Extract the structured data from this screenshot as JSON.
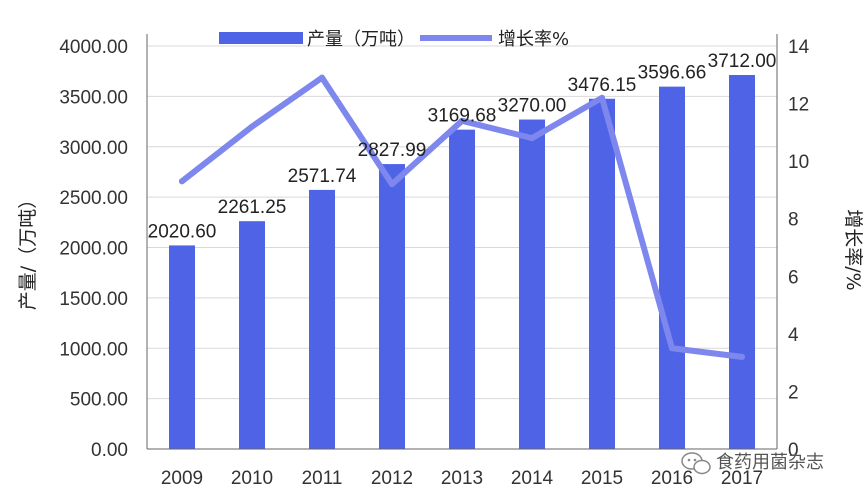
{
  "chart_data": {
    "type": "bar",
    "categories": [
      "2009",
      "2010",
      "2011",
      "2012",
      "2013",
      "2014",
      "2015",
      "2016",
      "2017"
    ],
    "series": [
      {
        "name": "产量（万吨）",
        "type": "bar",
        "axis": "left",
        "values": [
          2020.6,
          2261.25,
          2571.74,
          2827.99,
          3169.68,
          3270.0,
          3476.15,
          3596.66,
          3712.0
        ],
        "labels": [
          "2020.60",
          "2261.25",
          "2571.74",
          "2827.99",
          "3169.68",
          "3270.00",
          "3476.15",
          "3596.66",
          "3712.00"
        ],
        "color": "#4f63e6"
      },
      {
        "name": "增长率%",
        "type": "line",
        "axis": "right",
        "values": [
          9.3,
          11.2,
          12.9,
          9.2,
          11.4,
          10.8,
          12.2,
          3.5,
          3.2
        ],
        "color": "#7d87ee"
      }
    ],
    "ylabel": "产量/（万吨）",
    "y2label": "增长率/%",
    "ylim": [
      0,
      4000
    ],
    "y2lim": [
      0,
      14
    ],
    "yticks": [
      "0.00",
      "500.00",
      "1000.00",
      "1500.00",
      "2000.00",
      "2500.00",
      "3000.00",
      "3500.00",
      "4000.00"
    ],
    "y2ticks": [
      "0",
      "2",
      "4",
      "6",
      "8",
      "10",
      "12",
      "14"
    ],
    "grid": true,
    "legend_position": "top-center"
  },
  "watermark": {
    "text": "食药用菌杂志",
    "icon": "wechat-icon"
  }
}
